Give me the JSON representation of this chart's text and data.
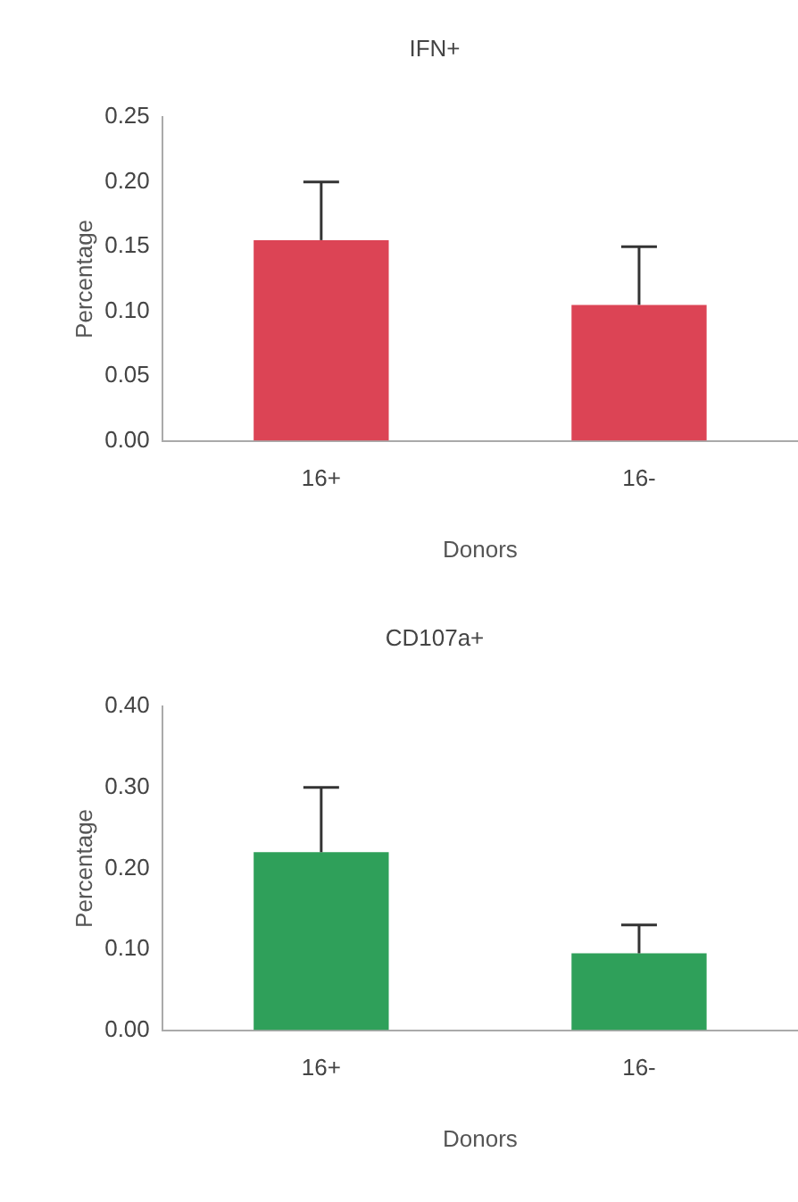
{
  "chart_data": [
    {
      "type": "bar",
      "title": "IFN+",
      "xlabel": "Donors",
      "ylabel": "Percentage",
      "categories": [
        "16+",
        "16-"
      ],
      "values": [
        0.155,
        0.105
      ],
      "errors": [
        [
          0.155,
          0.2
        ],
        [
          0.105,
          0.15
        ]
      ],
      "color": "#dc4455",
      "ylim": [
        0,
        0.25
      ],
      "yticks": [
        {
          "value": 0,
          "label": "0.00"
        },
        {
          "value": 0.05,
          "label": "0.05"
        },
        {
          "value": 0.1,
          "label": "0.10"
        },
        {
          "value": 0.15,
          "label": "0.15"
        },
        {
          "value": 0.2,
          "label": "0.20"
        },
        {
          "value": 0.25,
          "label": "0.25"
        }
      ],
      "grid": false,
      "legend": false
    },
    {
      "type": "bar",
      "title": "CD107a+",
      "xlabel": "Donors",
      "ylabel": "Percentage",
      "categories": [
        "16+",
        "16-"
      ],
      "values": [
        0.22,
        0.095
      ],
      "errors": [
        [
          0.22,
          0.3
        ],
        [
          0.095,
          0.13
        ]
      ],
      "color": "#2fa05a",
      "ylim": [
        0,
        0.4
      ],
      "yticks": [
        {
          "value": 0,
          "label": "0.00"
        },
        {
          "value": 0.1,
          "label": "0.10"
        },
        {
          "value": 0.2,
          "label": "0.20"
        },
        {
          "value": 0.3,
          "label": "0.30"
        },
        {
          "value": 0.4,
          "label": "0.40"
        }
      ],
      "grid": false,
      "legend": false
    }
  ]
}
